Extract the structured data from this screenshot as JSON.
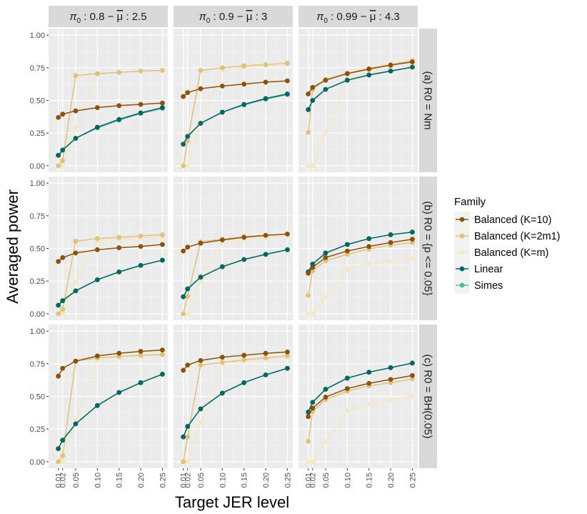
{
  "chart_data": {
    "type": "line",
    "xlabel": "Target JER level",
    "ylabel": "Averaged power",
    "x": [
      0.01,
      0.02,
      0.05,
      0.1,
      0.15,
      0.2,
      0.25
    ],
    "x_tick_labels": [
      "0.01",
      "0.02",
      "0.05",
      "0.10",
      "0.15",
      "0.20",
      "0.25"
    ],
    "ylim": [
      0,
      1
    ],
    "y_tick_labels": [
      "0.00",
      "0.25",
      "0.50",
      "0.75",
      "1.00"
    ],
    "y_ticks": [
      0,
      0.25,
      0.5,
      0.75,
      1.0
    ],
    "legend": {
      "title": "Family",
      "placement": "right",
      "entries": [
        {
          "name": "Balanced (K=10)",
          "color": "#8c510a"
        },
        {
          "name": "Balanced (K=2m1)",
          "color": "#dfc27d"
        },
        {
          "name": "Balanced (K=m)",
          "color": "#f6e8c3"
        },
        {
          "name": "Linear",
          "color": "#01665e"
        },
        {
          "name": "Simes",
          "color": "#5ab4ac"
        }
      ]
    },
    "col_facets": [
      {
        "pi": "π",
        "sub": "0",
        "rest": " : 0.8 − ",
        "mu": "μ",
        "val": " : 2.5"
      },
      {
        "pi": "π",
        "sub": "0",
        "rest": " : 0.9 − ",
        "mu": "μ",
        "val": " : 3"
      },
      {
        "pi": "π",
        "sub": "0",
        "rest": " : 0.99 − ",
        "mu": "μ",
        "val": " : 4.3"
      }
    ],
    "row_facets": [
      "(a) R0 = Nm",
      "(b) R0 = {p <= 0.05}",
      "(c) R0 = BH(0.05)"
    ],
    "panels": [
      [
        {
          "series": [
            {
              "name": "Balanced (K=10)",
              "values": [
                0.37,
                0.395,
                0.42,
                0.445,
                0.46,
                0.47,
                0.48
              ]
            },
            {
              "name": "Balanced (K=2m1)",
              "values": [
                0.0,
                0.04,
                0.69,
                0.705,
                0.715,
                0.725,
                0.73
              ]
            },
            {
              "name": "Balanced (K=m)",
              "values": [
                0.0,
                0.0,
                0.29,
                0.705,
                0.715,
                0.725,
                0.73
              ]
            },
            {
              "name": "Linear",
              "values": [
                0.08,
                0.12,
                0.21,
                0.295,
                0.355,
                0.405,
                0.445
              ]
            },
            {
              "name": "Simes",
              "values": [
                0.08,
                0.12,
                0.21,
                0.29,
                0.35,
                0.4,
                0.44
              ]
            }
          ]
        },
        {
          "series": [
            {
              "name": "Balanced (K=10)",
              "values": [
                0.53,
                0.56,
                0.59,
                0.61,
                0.625,
                0.64,
                0.65
              ]
            },
            {
              "name": "Balanced (K=2m1)",
              "values": [
                0.0,
                0.19,
                0.73,
                0.75,
                0.765,
                0.775,
                0.785
              ]
            },
            {
              "name": "Balanced (K=m)",
              "values": [
                0.0,
                0.0,
                0.33,
                0.73,
                0.755,
                0.765,
                0.775
              ]
            },
            {
              "name": "Linear",
              "values": [
                0.165,
                0.225,
                0.325,
                0.41,
                0.47,
                0.515,
                0.55
              ]
            },
            {
              "name": "Simes",
              "values": [
                0.165,
                0.225,
                0.325,
                0.41,
                0.465,
                0.51,
                0.545
              ]
            }
          ]
        },
        {
          "series": [
            {
              "name": "Balanced (K=10)",
              "values": [
                0.55,
                0.6,
                0.655,
                0.705,
                0.74,
                0.77,
                0.795
              ]
            },
            {
              "name": "Balanced (K=2m1)",
              "values": [
                0.255,
                0.585,
                0.66,
                0.71,
                0.745,
                0.775,
                0.805
              ]
            },
            {
              "name": "Balanced (K=m)",
              "values": [
                0.0,
                0.0,
                0.255,
                0.66,
                0.72,
                0.75,
                0.77
              ]
            },
            {
              "name": "Linear",
              "values": [
                0.43,
                0.5,
                0.585,
                0.655,
                0.695,
                0.725,
                0.755
              ]
            },
            {
              "name": "Simes",
              "values": [
                0.43,
                0.5,
                0.585,
                0.655,
                0.695,
                0.725,
                0.755
              ]
            }
          ]
        }
      ],
      [
        {
          "series": [
            {
              "name": "Balanced (K=10)",
              "values": [
                0.4,
                0.43,
                0.465,
                0.49,
                0.505,
                0.515,
                0.53
              ]
            },
            {
              "name": "Balanced (K=2m1)",
              "values": [
                0.0,
                0.035,
                0.555,
                0.575,
                0.585,
                0.595,
                0.605
              ]
            },
            {
              "name": "Balanced (K=m)",
              "values": [
                0.0,
                0.0,
                0.245,
                0.555,
                0.57,
                0.58,
                0.59
              ]
            },
            {
              "name": "Linear",
              "values": [
                0.065,
                0.1,
                0.175,
                0.26,
                0.32,
                0.37,
                0.41
              ]
            },
            {
              "name": "Simes",
              "values": [
                0.065,
                0.1,
                0.175,
                0.26,
                0.32,
                0.37,
                0.41
              ]
            }
          ]
        },
        {
          "series": [
            {
              "name": "Balanced (K=10)",
              "values": [
                0.48,
                0.51,
                0.54,
                0.565,
                0.585,
                0.6,
                0.61
              ]
            },
            {
              "name": "Balanced (K=2m1)",
              "values": [
                0.0,
                0.135,
                0.55,
                0.57,
                0.59,
                0.6,
                0.61
              ]
            },
            {
              "name": "Balanced (K=m)",
              "values": [
                0.0,
                0.0,
                0.255,
                0.545,
                0.565,
                0.58,
                0.595
              ]
            },
            {
              "name": "Linear",
              "values": [
                0.13,
                0.19,
                0.28,
                0.36,
                0.415,
                0.455,
                0.49
              ]
            },
            {
              "name": "Simes",
              "values": [
                0.13,
                0.19,
                0.28,
                0.36,
                0.415,
                0.455,
                0.49
              ]
            }
          ]
        },
        {
          "series": [
            {
              "name": "Balanced (K=10)",
              "values": [
                0.31,
                0.355,
                0.43,
                0.48,
                0.515,
                0.545,
                0.57
              ]
            },
            {
              "name": "Balanced (K=2m1)",
              "values": [
                0.14,
                0.33,
                0.405,
                0.455,
                0.495,
                0.525,
                0.545
              ]
            },
            {
              "name": "Balanced (K=m)",
              "values": [
                0.0,
                0.0,
                0.13,
                0.34,
                0.385,
                0.4,
                0.425
              ]
            },
            {
              "name": "Linear",
              "values": [
                0.32,
                0.38,
                0.465,
                0.53,
                0.575,
                0.605,
                0.625
              ]
            },
            {
              "name": "Simes",
              "values": [
                0.32,
                0.38,
                0.465,
                0.53,
                0.575,
                0.605,
                0.625
              ]
            }
          ]
        }
      ],
      [
        {
          "series": [
            {
              "name": "Balanced (K=10)",
              "values": [
                0.655,
                0.715,
                0.77,
                0.81,
                0.83,
                0.845,
                0.855
              ]
            },
            {
              "name": "Balanced (K=2m1)",
              "values": [
                0.0,
                0.045,
                0.77,
                0.795,
                0.805,
                0.815,
                0.82
              ]
            },
            {
              "name": "Balanced (K=m)",
              "values": [
                0.0,
                0.0,
                0.31,
                0.78,
                0.8,
                0.81,
                0.82
              ]
            },
            {
              "name": "Linear",
              "values": [
                0.1,
                0.165,
                0.29,
                0.43,
                0.53,
                0.605,
                0.67
              ]
            },
            {
              "name": "Simes",
              "values": [
                0.1,
                0.165,
                0.29,
                0.43,
                0.53,
                0.605,
                0.67
              ]
            }
          ]
        },
        {
          "series": [
            {
              "name": "Balanced (K=10)",
              "values": [
                0.7,
                0.74,
                0.775,
                0.8,
                0.815,
                0.83,
                0.84
              ]
            },
            {
              "name": "Balanced (K=2m1)",
              "values": [
                0.0,
                0.19,
                0.74,
                0.76,
                0.78,
                0.795,
                0.81
              ]
            },
            {
              "name": "Balanced (K=m)",
              "values": [
                0.0,
                0.0,
                0.3,
                0.755,
                0.77,
                0.785,
                0.8
              ]
            },
            {
              "name": "Linear",
              "values": [
                0.19,
                0.27,
                0.405,
                0.525,
                0.605,
                0.665,
                0.715
              ]
            },
            {
              "name": "Simes",
              "values": [
                0.19,
                0.27,
                0.405,
                0.525,
                0.605,
                0.665,
                0.715
              ]
            }
          ]
        },
        {
          "series": [
            {
              "name": "Balanced (K=10)",
              "values": [
                0.345,
                0.41,
                0.495,
                0.56,
                0.6,
                0.63,
                0.66
              ]
            },
            {
              "name": "Balanced (K=2m1)",
              "values": [
                0.155,
                0.385,
                0.475,
                0.54,
                0.58,
                0.605,
                0.635
              ]
            },
            {
              "name": "Balanced (K=m)",
              "values": [
                0.0,
                0.0,
                0.155,
                0.39,
                0.44,
                0.475,
                0.505
              ]
            },
            {
              "name": "Linear",
              "values": [
                0.38,
                0.455,
                0.555,
                0.64,
                0.685,
                0.72,
                0.755
              ]
            },
            {
              "name": "Simes",
              "values": [
                0.38,
                0.455,
                0.555,
                0.64,
                0.685,
                0.72,
                0.755
              ]
            }
          ]
        }
      ]
    ]
  }
}
